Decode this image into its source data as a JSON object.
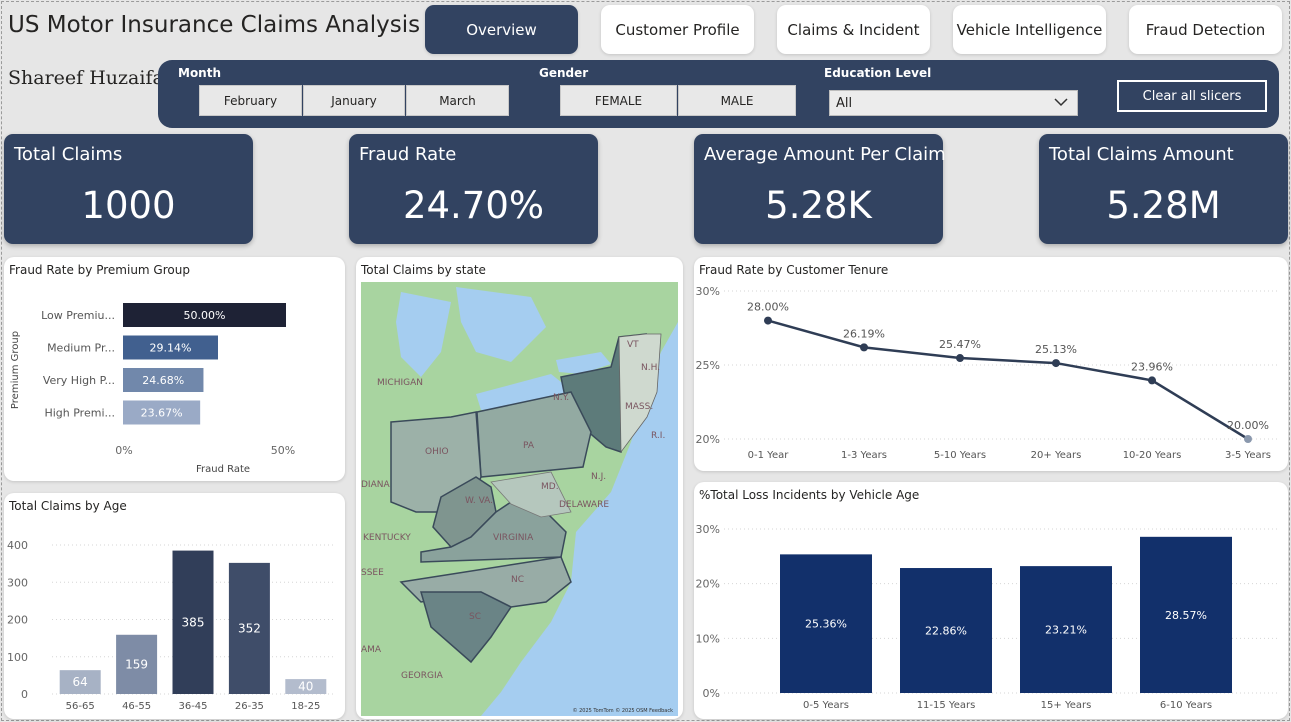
{
  "app": {
    "title": "US Motor Insurance Claims Analysis",
    "author": "Shareef Huzaifa"
  },
  "nav": [
    {
      "label": "Overview",
      "active": true
    },
    {
      "label": "Customer Profile",
      "active": false
    },
    {
      "label": "Claims & Incident",
      "active": false
    },
    {
      "label": "Vehicle Intelligence",
      "active": false
    },
    {
      "label": "Fraud Detection",
      "active": false
    }
  ],
  "filters": {
    "month": {
      "label": "Month",
      "options": [
        "February",
        "January",
        "March"
      ]
    },
    "gender": {
      "label": "Gender",
      "options": [
        "FEMALE",
        "MALE"
      ]
    },
    "education": {
      "label": "Education Level",
      "value": "All"
    },
    "clear_label": "Clear all slicers"
  },
  "kpis": [
    {
      "title": "Total Claims",
      "value": "1000"
    },
    {
      "title": "Fraud Rate",
      "value": "24.70%"
    },
    {
      "title": "Average Amount Per Claim",
      "value": "5.28K"
    },
    {
      "title": "Total Claims Amount",
      "value": "5.28M"
    }
  ],
  "map": {
    "title": "Total Claims by state",
    "labels": [
      "MICHIGAN",
      "OHIO",
      "N.Y.",
      "PA",
      "VT",
      "N.H.",
      "MASS.",
      "R.I.",
      "N.J.",
      "MD.",
      "DELAWARE",
      "W. VA.",
      "VIRGINIA",
      "KENTUCKY",
      "NC",
      "SC",
      "GEORGIA",
      "DIANA",
      "SSEE",
      "AMA"
    ],
    "attribution": "© 2025 TomTom  © 2025 OSM  Feedback"
  },
  "colors": {
    "navy": "#324361",
    "page_bg": "#e6e6e6",
    "bar_dark": "#1e2235",
    "bar_blue": "#12306b",
    "line": "#2f3d55"
  },
  "chart_data": [
    {
      "id": "premium",
      "type": "bar",
      "orientation": "horizontal",
      "title": "Fraud Rate by Premium Group",
      "xlabel": "Fraud Rate",
      "ylabel": "Premium Group",
      "categories": [
        "Low Premiu...",
        "Medium Pr...",
        "Very High P...",
        "High Premi..."
      ],
      "values": [
        50.0,
        29.14,
        24.68,
        23.67
      ],
      "data_labels": [
        "50.00%",
        "29.14%",
        "24.68%",
        "23.67%"
      ],
      "xlim": [
        0,
        50
      ],
      "xticks": [
        "0%",
        "50%"
      ],
      "colors": [
        "#1e2235",
        "#41608f",
        "#7188ab",
        "#9aaac6"
      ]
    },
    {
      "id": "age",
      "type": "bar",
      "title": "Total Claims by Age",
      "categories": [
        "56-65",
        "46-55",
        "36-45",
        "26-35",
        "18-25"
      ],
      "values": [
        64,
        159,
        385,
        352,
        40
      ],
      "ylim": [
        0,
        400
      ],
      "yticks": [
        "0",
        "100",
        "200",
        "300",
        "400"
      ],
      "colors": [
        "#a7b2c5",
        "#7e8ca6",
        "#313e59",
        "#3f4d69",
        "#b3bccd"
      ]
    },
    {
      "id": "tenure",
      "type": "line",
      "title": "Fraud Rate by Customer Tenure",
      "categories": [
        "0-1 Year",
        "1-3 Years",
        "5-10 Years",
        "20+ Years",
        "10-20 Years",
        "3-5 Years"
      ],
      "values": [
        28.0,
        26.19,
        25.47,
        25.13,
        23.96,
        20.0
      ],
      "data_labels": [
        "28.00%",
        "26.19%",
        "25.47%",
        "25.13%",
        "23.96%",
        "20.00%"
      ],
      "ylim": [
        20,
        30
      ],
      "yticks": [
        "20%",
        "25%",
        "30%"
      ]
    },
    {
      "id": "vehicle",
      "type": "bar",
      "title": "%Total Loss Incidents by Vehicle Age",
      "categories": [
        "0-5 Years",
        "11-15 Years",
        "15+ Years",
        "6-10 Years"
      ],
      "values": [
        25.36,
        22.86,
        23.21,
        28.57
      ],
      "data_labels": [
        "25.36%",
        "22.86%",
        "23.21%",
        "28.57%"
      ],
      "ylim": [
        0,
        30
      ],
      "yticks": [
        "0%",
        "10%",
        "20%",
        "30%"
      ]
    }
  ]
}
